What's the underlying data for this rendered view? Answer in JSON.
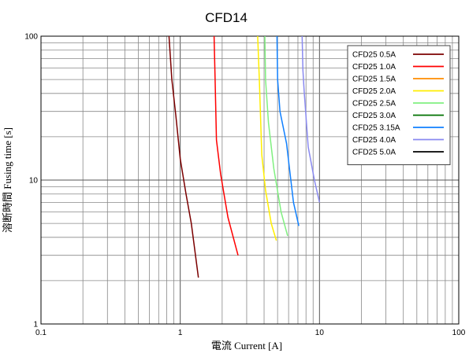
{
  "chart_data": {
    "type": "line",
    "title": "CFD14",
    "xlabel": "電流 Current [A]",
    "ylabel": "溶断時間 Fusing time [s]",
    "x_scale": "log",
    "y_scale": "log",
    "xlim": [
      0.1,
      100
    ],
    "ylim": [
      1,
      100
    ],
    "x_ticks": [
      "0.1",
      "1",
      "10",
      "100"
    ],
    "y_ticks": [
      "1",
      "10",
      "100"
    ],
    "grid": true,
    "legend_position": "top-right",
    "series": [
      {
        "name": "CFD25 0.5A",
        "color": "#7b0000",
        "x": [
          0.83,
          0.87,
          0.93,
          1.0,
          1.1,
          1.2,
          1.35
        ],
        "y": [
          100,
          50,
          28,
          14,
          8,
          5,
          2.1
        ]
      },
      {
        "name": "CFD25 1.0A",
        "color": "#ff0000",
        "x": [
          1.75,
          1.78,
          1.82,
          1.95,
          2.2,
          2.6
        ],
        "y": [
          100,
          50,
          19,
          11,
          5.5,
          3.0
        ]
      },
      {
        "name": "CFD25 1.5A",
        "color": "#ff8c00",
        "x": [],
        "y": []
      },
      {
        "name": "CFD25 2.0A",
        "color": "#ffee00",
        "x": [
          3.6,
          3.7,
          3.85,
          4.1,
          4.5,
          4.9
        ],
        "y": [
          100,
          50,
          15,
          8.5,
          5,
          3.8
        ]
      },
      {
        "name": "CFD25 2.5A",
        "color": "#80f080",
        "x": [
          4.05,
          4.1,
          4.3,
          4.7,
          5.3,
          5.9
        ],
        "y": [
          100,
          50,
          25,
          12,
          6,
          4.1
        ]
      },
      {
        "name": "CFD25 3.0A",
        "color": "#007000",
        "x": [],
        "y": []
      },
      {
        "name": "CFD25 3.15A",
        "color": "#1080ff",
        "x": [
          4.95,
          5.0,
          5.2,
          5.8,
          6.5,
          7.1
        ],
        "y": [
          100,
          50,
          30,
          18,
          7,
          4.8
        ]
      },
      {
        "name": "CFD25 4.0A",
        "color": "#8a8af0",
        "x": [
          7.5,
          7.6,
          7.75,
          8.3,
          9.2,
          10.0
        ],
        "y": [
          100,
          58,
          42,
          17,
          10,
          7
        ]
      },
      {
        "name": "CFD25 5.0A",
        "color": "#000000",
        "x": [],
        "y": []
      }
    ]
  }
}
